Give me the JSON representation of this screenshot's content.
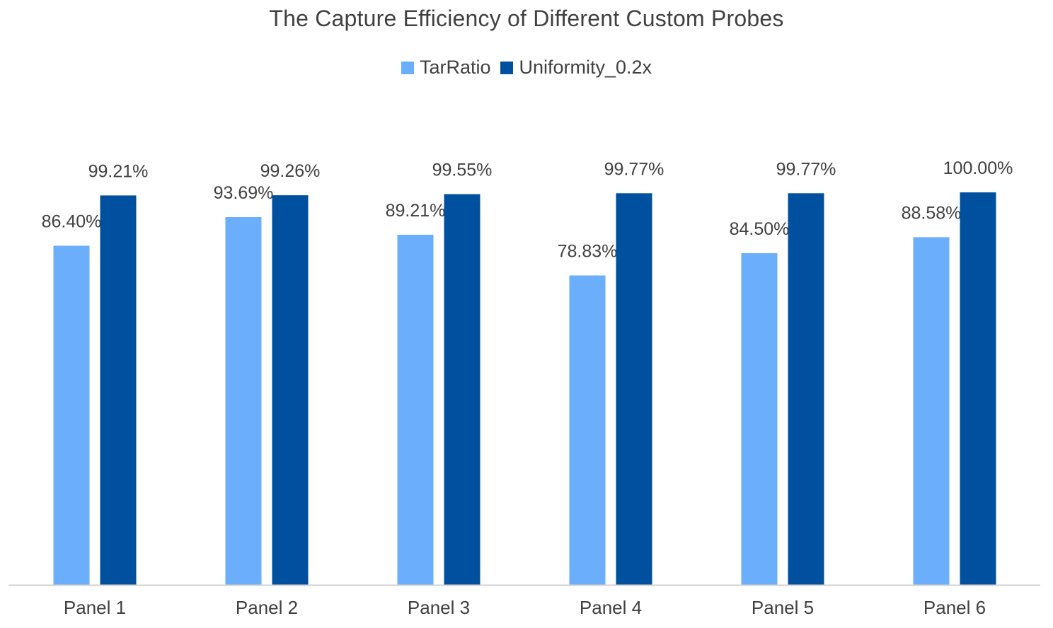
{
  "chart_data": {
    "type": "bar",
    "title": "The Capture Efficiency of Different Custom Probes",
    "xlabel": "",
    "ylabel": "",
    "categories": [
      "Panel 1",
      "Panel 2",
      "Panel 3",
      "Panel 4",
      "Panel 5",
      "Panel 6"
    ],
    "series": [
      {
        "name": "TarRatio",
        "color": "#6aaefc",
        "values": [
          86.4,
          93.69,
          89.21,
          78.83,
          84.5,
          88.58
        ],
        "labels": [
          "86.40%",
          "93.69%",
          "89.21%",
          "78.83%",
          "84.50%",
          "88.58%"
        ]
      },
      {
        "name": "Uniformity_0.2x",
        "color": "#0050a0",
        "values": [
          99.21,
          99.26,
          99.55,
          99.77,
          99.77,
          100.0
        ],
        "labels": [
          "99.21%",
          "99.26%",
          "99.55%",
          "99.77%",
          "99.77%",
          "100.00%"
        ]
      }
    ],
    "ylim": [
      0,
      100
    ],
    "grid": false,
    "legend_position": "top",
    "axis_color": "#d0d0d0"
  }
}
